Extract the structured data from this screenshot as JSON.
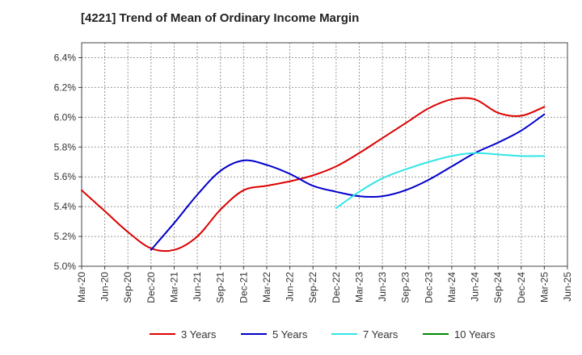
{
  "chart_data": {
    "type": "line",
    "title": "[4221]  Trend of Mean of Ordinary Income Margin",
    "xlabel": "",
    "ylabel": "",
    "ylim": [
      5.0,
      6.5
    ],
    "y_ticks": [
      "5.0%",
      "5.2%",
      "5.4%",
      "5.6%",
      "5.8%",
      "6.0%",
      "6.2%",
      "6.4%"
    ],
    "x_ticks": [
      "Mar-20",
      "Jun-20",
      "Sep-20",
      "Dec-20",
      "Mar-21",
      "Jun-21",
      "Sep-21",
      "Dec-21",
      "Mar-22",
      "Jun-22",
      "Sep-22",
      "Dec-22",
      "Mar-23",
      "Jun-23",
      "Sep-23",
      "Dec-23",
      "Mar-24",
      "Jun-24",
      "Sep-24",
      "Dec-24",
      "Mar-25",
      "Jun-25"
    ],
    "grid": true,
    "legend_position": "bottom",
    "series": [
      {
        "name": "3 Years",
        "color": "#dd0000",
        "values": [
          5.51,
          5.37,
          5.23,
          5.12,
          5.11,
          5.2,
          5.38,
          5.51,
          5.54,
          5.57,
          5.61,
          5.67,
          5.76,
          5.86,
          5.96,
          6.06,
          6.12,
          6.12,
          6.03,
          6.01,
          6.07,
          null
        ]
      },
      {
        "name": "5 Years",
        "color": "#0000cc",
        "values": [
          null,
          null,
          null,
          5.11,
          5.29,
          5.48,
          5.64,
          5.71,
          5.68,
          5.62,
          5.54,
          5.5,
          5.47,
          5.47,
          5.51,
          5.58,
          5.67,
          5.76,
          5.83,
          5.91,
          6.02,
          null
        ]
      },
      {
        "name": "7 Years",
        "color": "#33e5e5",
        "values": [
          null,
          null,
          null,
          null,
          null,
          null,
          null,
          null,
          null,
          null,
          null,
          5.39,
          5.5,
          5.59,
          5.65,
          5.7,
          5.74,
          5.76,
          5.75,
          5.74,
          5.74,
          null
        ]
      },
      {
        "name": "10 Years",
        "color": "#008800",
        "values": [
          null,
          null,
          null,
          null,
          null,
          null,
          null,
          null,
          null,
          null,
          null,
          null,
          null,
          null,
          null,
          null,
          null,
          null,
          null,
          null,
          null,
          null
        ]
      }
    ]
  }
}
